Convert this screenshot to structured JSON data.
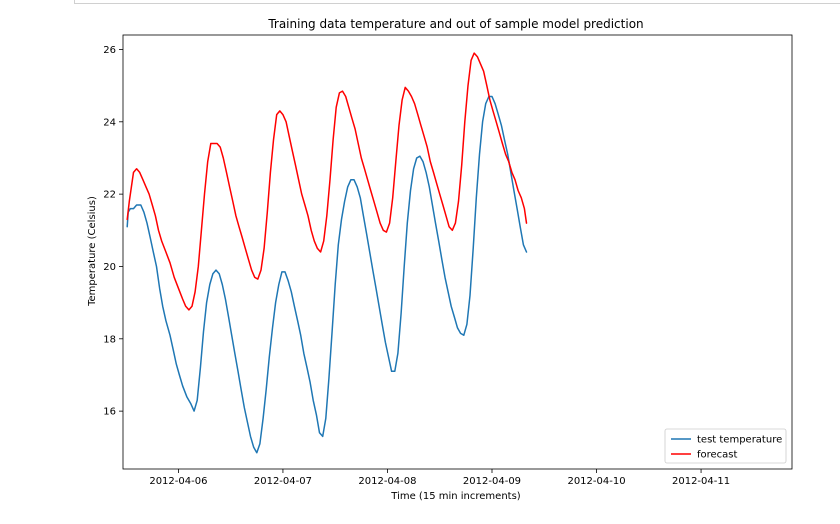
{
  "chart_data": {
    "type": "line",
    "title": "Training data temperature and out of sample model prediction",
    "xlabel": "Time (15 min increments)",
    "ylabel": "Temperature (Celsius)",
    "xlim": [
      5.47,
      11.87
    ],
    "ylim": [
      14.4,
      26.4
    ],
    "x_tick_values": [
      6.0,
      7.0,
      8.0,
      9.0,
      10.0,
      11.0
    ],
    "x_tick_labels": [
      "2012-04-06",
      "2012-04-07",
      "2012-04-08",
      "2012-04-09",
      "2012-04-10",
      "2012-04-11"
    ],
    "y_ticks": [
      16,
      18,
      20,
      22,
      24,
      26
    ],
    "legend_position": "lower right",
    "grid": false,
    "series": [
      {
        "name": "test temperature",
        "color": "#1f77b4",
        "points": [
          [
            5.51,
            21.1
          ],
          [
            5.52,
            21.5
          ],
          [
            5.54,
            21.6
          ],
          [
            5.57,
            21.6
          ],
          [
            5.6,
            21.7
          ],
          [
            5.64,
            21.7
          ],
          [
            5.67,
            21.5
          ],
          [
            5.7,
            21.2
          ],
          [
            5.73,
            20.8
          ],
          [
            5.76,
            20.4
          ],
          [
            5.79,
            20.0
          ],
          [
            5.82,
            19.4
          ],
          [
            5.85,
            18.9
          ],
          [
            5.88,
            18.5
          ],
          [
            5.92,
            18.1
          ],
          [
            5.95,
            17.7
          ],
          [
            5.98,
            17.3
          ],
          [
            6.01,
            17.0
          ],
          [
            6.04,
            16.7
          ],
          [
            6.08,
            16.4
          ],
          [
            6.12,
            16.2
          ],
          [
            6.15,
            16.0
          ],
          [
            6.18,
            16.3
          ],
          [
            6.21,
            17.2
          ],
          [
            6.24,
            18.2
          ],
          [
            6.27,
            19.0
          ],
          [
            6.3,
            19.5
          ],
          [
            6.33,
            19.8
          ],
          [
            6.36,
            19.9
          ],
          [
            6.39,
            19.8
          ],
          [
            6.42,
            19.5
          ],
          [
            6.45,
            19.1
          ],
          [
            6.48,
            18.6
          ],
          [
            6.51,
            18.1
          ],
          [
            6.54,
            17.6
          ],
          [
            6.57,
            17.1
          ],
          [
            6.6,
            16.6
          ],
          [
            6.63,
            16.1
          ],
          [
            6.66,
            15.7
          ],
          [
            6.69,
            15.3
          ],
          [
            6.72,
            15.0
          ],
          [
            6.75,
            14.85
          ],
          [
            6.78,
            15.1
          ],
          [
            6.81,
            15.8
          ],
          [
            6.84,
            16.6
          ],
          [
            6.87,
            17.5
          ],
          [
            6.9,
            18.3
          ],
          [
            6.93,
            19.0
          ],
          [
            6.96,
            19.5
          ],
          [
            6.99,
            19.85
          ],
          [
            7.02,
            19.85
          ],
          [
            7.05,
            19.6
          ],
          [
            7.08,
            19.3
          ],
          [
            7.11,
            18.9
          ],
          [
            7.14,
            18.5
          ],
          [
            7.17,
            18.1
          ],
          [
            7.2,
            17.6
          ],
          [
            7.23,
            17.2
          ],
          [
            7.26,
            16.8
          ],
          [
            7.29,
            16.3
          ],
          [
            7.32,
            15.9
          ],
          [
            7.35,
            15.4
          ],
          [
            7.38,
            15.3
          ],
          [
            7.41,
            15.8
          ],
          [
            7.44,
            16.9
          ],
          [
            7.47,
            18.2
          ],
          [
            7.5,
            19.5
          ],
          [
            7.53,
            20.6
          ],
          [
            7.56,
            21.3
          ],
          [
            7.59,
            21.8
          ],
          [
            7.62,
            22.2
          ],
          [
            7.65,
            22.4
          ],
          [
            7.68,
            22.4
          ],
          [
            7.71,
            22.2
          ],
          [
            7.74,
            21.9
          ],
          [
            7.77,
            21.4
          ],
          [
            7.8,
            20.9
          ],
          [
            7.83,
            20.4
          ],
          [
            7.86,
            19.9
          ],
          [
            7.89,
            19.4
          ],
          [
            7.92,
            18.9
          ],
          [
            7.95,
            18.4
          ],
          [
            7.98,
            17.9
          ],
          [
            8.01,
            17.5
          ],
          [
            8.04,
            17.1
          ],
          [
            8.07,
            17.1
          ],
          [
            8.1,
            17.6
          ],
          [
            8.13,
            18.7
          ],
          [
            8.16,
            20.0
          ],
          [
            8.19,
            21.2
          ],
          [
            8.22,
            22.1
          ],
          [
            8.25,
            22.7
          ],
          [
            8.28,
            23.0
          ],
          [
            8.31,
            23.05
          ],
          [
            8.34,
            22.9
          ],
          [
            8.37,
            22.6
          ],
          [
            8.4,
            22.2
          ],
          [
            8.43,
            21.7
          ],
          [
            8.46,
            21.2
          ],
          [
            8.49,
            20.7
          ],
          [
            8.52,
            20.2
          ],
          [
            8.55,
            19.7
          ],
          [
            8.58,
            19.3
          ],
          [
            8.61,
            18.9
          ],
          [
            8.64,
            18.6
          ],
          [
            8.67,
            18.3
          ],
          [
            8.7,
            18.15
          ],
          [
            8.73,
            18.1
          ],
          [
            8.76,
            18.4
          ],
          [
            8.79,
            19.2
          ],
          [
            8.82,
            20.5
          ],
          [
            8.85,
            21.9
          ],
          [
            8.88,
            23.1
          ],
          [
            8.91,
            24.0
          ],
          [
            8.94,
            24.5
          ],
          [
            8.97,
            24.7
          ],
          [
            9.0,
            24.7
          ],
          [
            9.03,
            24.5
          ],
          [
            9.06,
            24.2
          ],
          [
            9.09,
            23.9
          ],
          [
            9.12,
            23.5
          ],
          [
            9.15,
            23.1
          ],
          [
            9.18,
            22.6
          ],
          [
            9.21,
            22.1
          ],
          [
            9.24,
            21.6
          ],
          [
            9.27,
            21.1
          ],
          [
            9.3,
            20.6
          ],
          [
            9.33,
            20.4
          ]
        ]
      },
      {
        "name": "forecast",
        "color": "#ff0000",
        "points": [
          [
            5.51,
            21.3
          ],
          [
            5.53,
            21.8
          ],
          [
            5.55,
            22.2
          ],
          [
            5.57,
            22.6
          ],
          [
            5.6,
            22.7
          ],
          [
            5.63,
            22.6
          ],
          [
            5.66,
            22.4
          ],
          [
            5.69,
            22.2
          ],
          [
            5.72,
            22.0
          ],
          [
            5.75,
            21.7
          ],
          [
            5.78,
            21.4
          ],
          [
            5.81,
            21.0
          ],
          [
            5.84,
            20.7
          ],
          [
            5.88,
            20.4
          ],
          [
            5.92,
            20.1
          ],
          [
            5.96,
            19.7
          ],
          [
            6.0,
            19.4
          ],
          [
            6.04,
            19.1
          ],
          [
            6.07,
            18.9
          ],
          [
            6.1,
            18.8
          ],
          [
            6.13,
            18.9
          ],
          [
            6.16,
            19.3
          ],
          [
            6.19,
            20.0
          ],
          [
            6.22,
            21.0
          ],
          [
            6.25,
            22.0
          ],
          [
            6.28,
            22.9
          ],
          [
            6.31,
            23.4
          ],
          [
            6.34,
            23.4
          ],
          [
            6.37,
            23.4
          ],
          [
            6.4,
            23.3
          ],
          [
            6.43,
            23.0
          ],
          [
            6.46,
            22.6
          ],
          [
            6.49,
            22.2
          ],
          [
            6.52,
            21.8
          ],
          [
            6.55,
            21.4
          ],
          [
            6.58,
            21.1
          ],
          [
            6.61,
            20.8
          ],
          [
            6.64,
            20.5
          ],
          [
            6.67,
            20.2
          ],
          [
            6.7,
            19.9
          ],
          [
            6.73,
            19.7
          ],
          [
            6.76,
            19.65
          ],
          [
            6.79,
            19.9
          ],
          [
            6.82,
            20.5
          ],
          [
            6.85,
            21.5
          ],
          [
            6.88,
            22.6
          ],
          [
            6.91,
            23.5
          ],
          [
            6.94,
            24.2
          ],
          [
            6.97,
            24.3
          ],
          [
            7.0,
            24.2
          ],
          [
            7.03,
            24.0
          ],
          [
            7.06,
            23.6
          ],
          [
            7.09,
            23.2
          ],
          [
            7.12,
            22.8
          ],
          [
            7.15,
            22.4
          ],
          [
            7.18,
            22.0
          ],
          [
            7.21,
            21.7
          ],
          [
            7.24,
            21.4
          ],
          [
            7.27,
            21.0
          ],
          [
            7.3,
            20.7
          ],
          [
            7.33,
            20.5
          ],
          [
            7.36,
            20.4
          ],
          [
            7.39,
            20.7
          ],
          [
            7.42,
            21.4
          ],
          [
            7.45,
            22.4
          ],
          [
            7.48,
            23.5
          ],
          [
            7.51,
            24.4
          ],
          [
            7.54,
            24.8
          ],
          [
            7.57,
            24.85
          ],
          [
            7.6,
            24.7
          ],
          [
            7.63,
            24.4
          ],
          [
            7.66,
            24.1
          ],
          [
            7.69,
            23.8
          ],
          [
            7.72,
            23.4
          ],
          [
            7.75,
            23.0
          ],
          [
            7.78,
            22.7
          ],
          [
            7.81,
            22.4
          ],
          [
            7.84,
            22.1
          ],
          [
            7.87,
            21.8
          ],
          [
            7.9,
            21.5
          ],
          [
            7.93,
            21.2
          ],
          [
            7.96,
            21.0
          ],
          [
            7.99,
            20.95
          ],
          [
            8.02,
            21.2
          ],
          [
            8.05,
            21.9
          ],
          [
            8.08,
            22.9
          ],
          [
            8.11,
            23.9
          ],
          [
            8.14,
            24.6
          ],
          [
            8.17,
            24.95
          ],
          [
            8.2,
            24.85
          ],
          [
            8.23,
            24.7
          ],
          [
            8.26,
            24.5
          ],
          [
            8.29,
            24.2
          ],
          [
            8.32,
            23.9
          ],
          [
            8.35,
            23.6
          ],
          [
            8.38,
            23.3
          ],
          [
            8.41,
            22.9
          ],
          [
            8.44,
            22.6
          ],
          [
            8.47,
            22.3
          ],
          [
            8.5,
            22.0
          ],
          [
            8.53,
            21.7
          ],
          [
            8.56,
            21.4
          ],
          [
            8.59,
            21.1
          ],
          [
            8.62,
            21.0
          ],
          [
            8.65,
            21.2
          ],
          [
            8.68,
            21.8
          ],
          [
            8.71,
            22.8
          ],
          [
            8.74,
            24.0
          ],
          [
            8.77,
            25.0
          ],
          [
            8.8,
            25.7
          ],
          [
            8.83,
            25.9
          ],
          [
            8.86,
            25.8
          ],
          [
            8.89,
            25.6
          ],
          [
            8.92,
            25.4
          ],
          [
            8.95,
            25.0
          ],
          [
            8.98,
            24.6
          ],
          [
            9.01,
            24.3
          ],
          [
            9.04,
            24.0
          ],
          [
            9.07,
            23.7
          ],
          [
            9.1,
            23.4
          ],
          [
            9.13,
            23.1
          ],
          [
            9.16,
            22.9
          ],
          [
            9.19,
            22.6
          ],
          [
            9.22,
            22.4
          ],
          [
            9.25,
            22.1
          ],
          [
            9.28,
            21.9
          ],
          [
            9.31,
            21.6
          ],
          [
            9.33,
            21.2
          ]
        ]
      }
    ]
  }
}
